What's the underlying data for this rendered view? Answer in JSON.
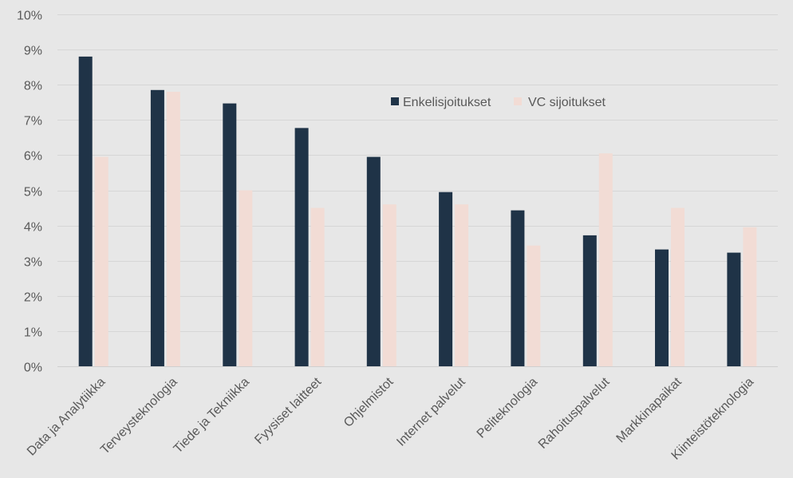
{
  "chart_data": {
    "type": "bar",
    "title": "",
    "xlabel": "",
    "ylabel": "",
    "ylim": [
      0,
      10
    ],
    "y_tick_step": 1,
    "y_tick_suffix": "%",
    "grid": true,
    "legend": {
      "placement": "top-right"
    },
    "categories": [
      "Data ja Analytiikka",
      "Terveysteknologia",
      "Tiede ja Tekniikka",
      "Fyysiset laitteet",
      "Ohjelmistot",
      "Internet palvelut",
      "Peliteknologia",
      "Rahoituspalvelut",
      "Markkinapaikat",
      "Kiinteistöteknologia"
    ],
    "series": [
      {
        "name": "Enkelisjoitukset",
        "color": "#1f3347",
        "values": [
          8.8,
          7.85,
          7.47,
          6.77,
          5.95,
          4.95,
          4.43,
          3.72,
          3.32,
          3.23
        ]
      },
      {
        "name": "VC sijoitukset",
        "color": "#f2dcd5",
        "values": [
          5.95,
          7.8,
          5.0,
          4.5,
          4.6,
          4.6,
          3.43,
          6.05,
          4.5,
          3.95
        ]
      }
    ]
  }
}
